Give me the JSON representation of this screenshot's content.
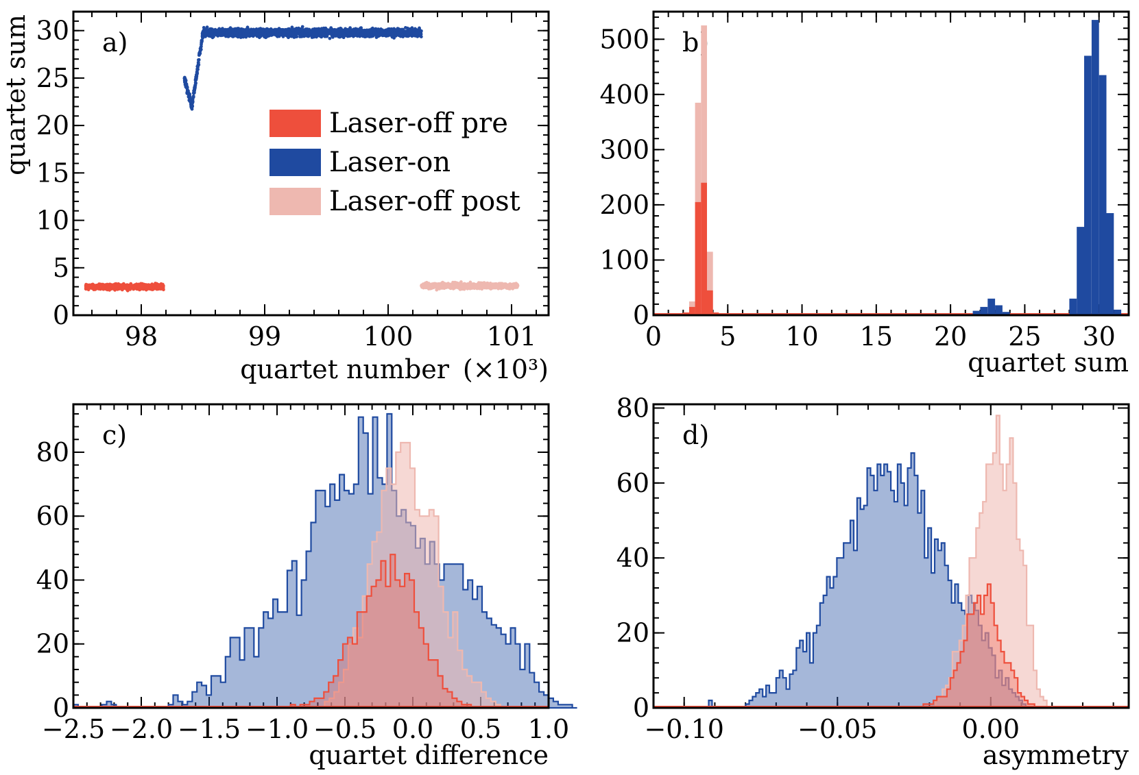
{
  "chart_data": [
    {
      "panel": "a)",
      "type": "scatter",
      "xlabel": "quartet number",
      "xlabel_unit": "(×10³)",
      "ylabel": "quartet sum",
      "xlim": [
        97.45,
        101.3
      ],
      "ylim": [
        0,
        32
      ],
      "xticks": [
        98,
        99,
        100,
        101
      ],
      "yticks": [
        0,
        5,
        10,
        15,
        20,
        25,
        30
      ],
      "legend": {
        "placement": "center-right",
        "entries": [
          "Laser-off pre",
          "Laser-on",
          "Laser-off post"
        ]
      },
      "series": [
        {
          "name": "Laser-off pre",
          "color": "#ee4f3c",
          "x_range": [
            97.55,
            98.18
          ],
          "mean": 3.0,
          "spread": 0.35
        },
        {
          "name": "Laser-on",
          "color": "#1f4aa0",
          "x_range": [
            98.35,
            100.27
          ],
          "dip": {
            "x_start": 98.35,
            "x_min": 98.41,
            "min": 22.0,
            "recovered_at": 98.5
          },
          "mean": 29.8,
          "spread": 0.5
        },
        {
          "name": "Laser-off post",
          "color": "#eeb8b0",
          "x_range": [
            100.27,
            101.05
          ],
          "mean": 3.1,
          "spread": 0.35
        }
      ]
    },
    {
      "panel": "b)",
      "type": "bar",
      "xlabel": "quartet sum",
      "ylabel": "",
      "xlim": [
        0,
        32
      ],
      "ylim": [
        0,
        550
      ],
      "xticks": [
        0,
        5,
        10,
        15,
        20,
        25,
        30
      ],
      "yticks": [
        0,
        100,
        200,
        300,
        400,
        500
      ],
      "series": [
        {
          "name": "Laser-off post",
          "color": "#eeb8b0",
          "bins": [
            [
              2.0,
              2.4,
              5
            ],
            [
              2.4,
              2.8,
              25
            ],
            [
              2.8,
              3.2,
              385
            ],
            [
              3.2,
              3.6,
              525
            ],
            [
              3.6,
              4.0,
              115
            ],
            [
              4.0,
              4.4,
              5
            ]
          ]
        },
        {
          "name": "Laser-off pre",
          "color": "#ee4f3c",
          "bins": [
            [
              2.0,
              2.4,
              5
            ],
            [
              2.4,
              2.8,
              15
            ],
            [
              2.8,
              3.2,
              205
            ],
            [
              3.2,
              3.6,
              240
            ],
            [
              3.6,
              4.0,
              45
            ],
            [
              4.0,
              4.4,
              5
            ]
          ]
        },
        {
          "name": "Laser-on",
          "color": "#1f4aa0",
          "bins": [
            [
              21.5,
              22.0,
              8
            ],
            [
              22.0,
              22.5,
              15
            ],
            [
              22.5,
              23.0,
              30
            ],
            [
              23.0,
              23.5,
              18
            ],
            [
              23.5,
              24.0,
              6
            ],
            [
              28.0,
              28.5,
              30
            ],
            [
              28.5,
              29.0,
              160
            ],
            [
              29.0,
              29.5,
              470
            ],
            [
              29.5,
              30.0,
              535
            ],
            [
              30.0,
              30.5,
              435
            ],
            [
              30.5,
              31.0,
              185
            ],
            [
              31.0,
              31.5,
              10
            ]
          ]
        }
      ]
    },
    {
      "panel": "c)",
      "type": "histogram",
      "xlabel": "quartet difference",
      "ylabel": "",
      "xlim": [
        -2.5,
        1.0
      ],
      "ylim": [
        0,
        95
      ],
      "xticks": [
        -2.5,
        -2.0,
        -1.5,
        -1.0,
        -0.5,
        0.0,
        0.5,
        1.0
      ],
      "xtick_labels": [
        "−2.5",
        "−2.0",
        "−1.5",
        "−1.0",
        "−0.5",
        "0.0",
        "0.5",
        "1.0"
      ],
      "yticks": [
        0,
        20,
        40,
        60,
        80
      ],
      "series": [
        {
          "name": "Laser-on",
          "color": "#1f4aa0",
          "x0": -2.5,
          "bin_width": 0.035,
          "values": [
            1,
            0,
            0,
            0,
            0,
            0,
            1,
            2,
            1,
            0,
            0,
            0,
            0,
            0,
            0,
            0,
            0,
            0,
            0,
            0,
            1,
            4,
            2,
            1,
            2,
            5,
            8,
            7,
            4,
            10,
            10,
            8,
            16,
            22,
            22,
            15,
            25,
            25,
            16,
            25,
            30,
            28,
            34,
            30,
            30,
            43,
            46,
            29,
            40,
            49,
            58,
            68,
            68,
            63,
            70,
            65,
            73,
            68,
            67,
            70,
            91,
            86,
            67,
            91,
            72,
            70,
            92,
            68,
            60,
            62,
            58,
            57,
            50,
            53,
            45,
            52,
            45,
            40,
            45,
            45,
            45,
            45,
            37,
            40,
            34,
            38,
            30,
            28,
            26,
            25,
            23,
            20,
            25,
            20,
            12,
            20,
            11,
            8,
            5,
            4,
            3,
            2,
            1,
            1,
            1,
            0
          ]
        },
        {
          "name": "Laser-off post",
          "color": "#eeb8b0",
          "x0": -0.65,
          "bin_width": 0.035,
          "values": [
            2,
            3,
            5,
            8,
            12,
            20,
            25,
            22,
            35,
            45,
            52,
            55,
            68,
            75,
            70,
            80,
            83,
            83,
            75,
            62,
            60,
            60,
            62,
            60,
            38,
            30,
            22,
            30,
            18,
            12,
            10,
            8,
            8,
            5,
            3,
            2,
            1
          ]
        },
        {
          "name": "Laser-off pre",
          "color": "#ee4f3c",
          "x0": -0.9,
          "bin_width": 0.035,
          "values": [
            1,
            0,
            1,
            1,
            2,
            3,
            3,
            5,
            8,
            10,
            15,
            20,
            22,
            20,
            30,
            30,
            35,
            38,
            40,
            46,
            38,
            48,
            40,
            38,
            42,
            40,
            30,
            25,
            20,
            15,
            15,
            10,
            6,
            5,
            3,
            2,
            1,
            1
          ]
        }
      ]
    },
    {
      "panel": "d)",
      "type": "histogram",
      "xlabel": "asymmetry",
      "ylabel": "",
      "xlim": [
        -0.11,
        0.045
      ],
      "ylim": [
        0,
        81
      ],
      "xticks": [
        -0.1,
        -0.05,
        0.0
      ],
      "xtick_labels": [
        "−0.10",
        "−0.05",
        "0.00"
      ],
      "yticks": [
        0,
        20,
        40,
        60,
        80
      ],
      "series": [
        {
          "name": "Laser-on",
          "color": "#1f4aa0",
          "x0": -0.092,
          "bin_width": 0.0011,
          "values": [
            2,
            0,
            0,
            0,
            0,
            0,
            0,
            0,
            0,
            0,
            0,
            1,
            2,
            3,
            4,
            5,
            3,
            6,
            4,
            4,
            8,
            10,
            8,
            5,
            9,
            10,
            16,
            18,
            15,
            20,
            12,
            20,
            22,
            28,
            30,
            35,
            32,
            35,
            40,
            40,
            44,
            44,
            50,
            42,
            56,
            53,
            54,
            64,
            62,
            58,
            65,
            62,
            65,
            63,
            58,
            55,
            65,
            60,
            54,
            64,
            68,
            62,
            52,
            58,
            40,
            48,
            36,
            45,
            42,
            44,
            38,
            34,
            28,
            33,
            28,
            26,
            25,
            30,
            28,
            26,
            22,
            18,
            20,
            16,
            14,
            8,
            10,
            6,
            8,
            5,
            4,
            3,
            2,
            1
          ]
        },
        {
          "name": "Laser-off post",
          "color": "#eeb8b0",
          "x0": -0.018,
          "bin_width": 0.0011,
          "values": [
            2,
            3,
            5,
            6,
            8,
            15,
            15,
            18,
            22,
            30,
            40,
            40,
            48,
            52,
            55,
            65,
            65,
            68,
            78,
            65,
            58,
            65,
            72,
            60,
            45,
            42,
            38,
            22,
            22,
            10,
            5,
            3,
            2
          ]
        },
        {
          "name": "Laser-off pre",
          "color": "#ee4f3c",
          "x0": -0.022,
          "bin_width": 0.0011,
          "values": [
            1,
            1,
            1,
            2,
            3,
            3,
            3,
            5,
            8,
            10,
            12,
            15,
            18,
            25,
            25,
            28,
            30,
            25,
            30,
            33,
            28,
            22,
            18,
            15,
            12,
            12,
            10,
            8,
            4,
            3,
            2,
            1,
            1
          ]
        }
      ]
    }
  ]
}
